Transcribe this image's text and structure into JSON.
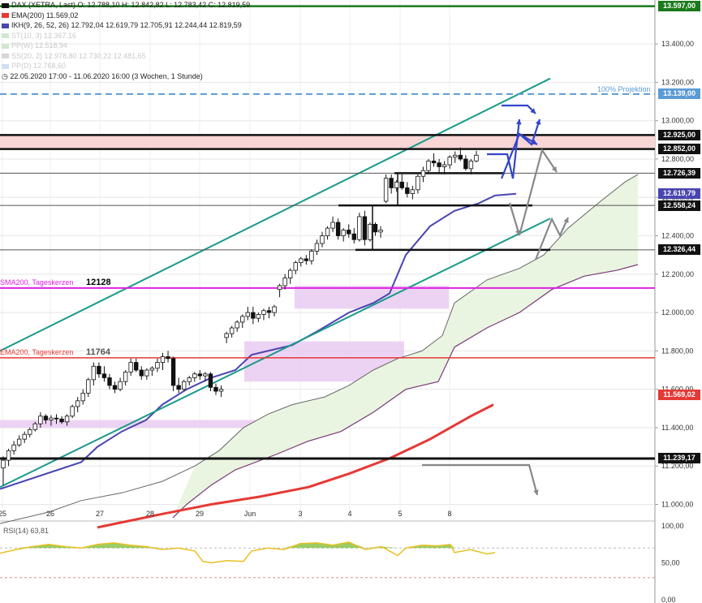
{
  "legend": {
    "main": "DAX (XETRA, Last)  O: 12.788,10  H: 12.842,82  L: 12.783,42  C: 12.819,59",
    "ema": "EMA(200)  11.569,02",
    "ikh": "IKH(9, 26, 52, 26)  12.792,04  12.619,79  12.705,91  12.244,44  12.819,59",
    "st": "ST(10, 3)  12.367,16",
    "pp": "PP(W)  12.518,94",
    "ss": "SS(20, 2)  12.978,80  12.730,22  12.481,65",
    "ppd": "PP(D)  12.768,60",
    "range": "22.05.2020 17:00 - 11.06.2020 16:00  (3 Wochen, 1 Stunde)"
  },
  "annotations": {
    "sma200": "SMA200, Tageskerzen",
    "sma200_value": "12128",
    "ema200": "EMA200, Tageskerzen",
    "ema200_value": "11764",
    "projektion": "100% Projektion"
  },
  "colors": {
    "green_line": "#1a7a1a",
    "projection": "#5b9bd5",
    "magenta": "#e020e0",
    "red": "#e53935",
    "channel": "#1a9a8a",
    "ikh_blue": "#4a46b0",
    "ikh_purple": "#7b3a7b",
    "cloud": "#e9f5e1",
    "black": "#111111",
    "pink_zone": "#f8d6d6",
    "lavender_zone": "#e8c8f0",
    "blue_arrow": "#3344cc",
    "grey_arrow": "#888888",
    "rsi": "#e8c020"
  },
  "chart_data": [
    {
      "type": "candlestick",
      "title": "DAX (XETRA, Last)",
      "x_ticks": [
        "25",
        "26",
        "27",
        "28",
        "29",
        "Jun",
        "3",
        "4",
        "5",
        "8"
      ],
      "y_ticks": [
        "11.000,00",
        "11.200,00",
        "11.400,00",
        "11.600,00",
        "11.800,00",
        "12.000,00",
        "12.200,00",
        "12.400,00",
        "12.600,00",
        "12.800,00",
        "13.000,00",
        "13.200,00",
        "13.400,00"
      ],
      "ylim": [
        10900,
        13620
      ],
      "price_labels": [
        {
          "value": 13597,
          "text": "13.597,00",
          "color": "#1a7a1a"
        },
        {
          "value": 13139,
          "text": "13.139,00",
          "color": "#5b9bd5"
        },
        {
          "value": 12925,
          "text": "12.925,00",
          "color": "#111111"
        },
        {
          "value": 12852,
          "text": "12.852,00",
          "color": "#111111"
        },
        {
          "value": 12726.39,
          "text": "12.726,39",
          "color": "#111111"
        },
        {
          "value": 12619.79,
          "text": "12.619,79",
          "color": "#4a46b0"
        },
        {
          "value": 12558.24,
          "text": "12.558,24",
          "color": "#111111"
        },
        {
          "value": 12326.44,
          "text": "12.326,44",
          "color": "#111111"
        },
        {
          "value": 11569.02,
          "text": "11.569,02",
          "color": "#e53935"
        },
        {
          "value": 11239.17,
          "text": "11.239,17",
          "color": "#111111"
        }
      ],
      "levels": {
        "resistance_green": 13597,
        "projection_100": 13139,
        "zone_top": 12925,
        "zone_bottom": 12852,
        "support_1": 12726.39,
        "support_2": 12558.24,
        "support_3": 12326.44,
        "sma200_daily": 12128,
        "ema200_daily": 11764,
        "support_low": 11239.17
      },
      "candles": [
        [
          11190,
          11250,
          11100,
          11230
        ],
        [
          11230,
          11290,
          11200,
          11280
        ],
        [
          11280,
          11330,
          11260,
          11310
        ],
        [
          11310,
          11360,
          11300,
          11340
        ],
        [
          11340,
          11380,
          11320,
          11365
        ],
        [
          11365,
          11400,
          11350,
          11390
        ],
        [
          11390,
          11430,
          11380,
          11420
        ],
        [
          11420,
          11480,
          11400,
          11460
        ],
        [
          11460,
          11470,
          11420,
          11440
        ],
        [
          11440,
          11465,
          11410,
          11450
        ],
        [
          11450,
          11470,
          11420,
          11445
        ],
        [
          11445,
          11460,
          11420,
          11430
        ],
        [
          11430,
          11470,
          11410,
          11460
        ],
        [
          11460,
          11520,
          11450,
          11510
        ],
        [
          11510,
          11560,
          11480,
          11540
        ],
        [
          11540,
          11600,
          11520,
          11580
        ],
        [
          11580,
          11660,
          11560,
          11650
        ],
        [
          11650,
          11740,
          11620,
          11720
        ],
        [
          11720,
          11740,
          11660,
          11680
        ],
        [
          11680,
          11720,
          11640,
          11660
        ],
        [
          11660,
          11680,
          11600,
          11620
        ],
        [
          11620,
          11640,
          11580,
          11600
        ],
        [
          11600,
          11660,
          11590,
          11640
        ],
        [
          11640,
          11700,
          11620,
          11690
        ],
        [
          11690,
          11760,
          11670,
          11740
        ],
        [
          11740,
          11760,
          11690,
          11700
        ],
        [
          11700,
          11720,
          11650,
          11670
        ],
        [
          11670,
          11710,
          11650,
          11700
        ],
        [
          11700,
          11720,
          11670,
          11710
        ],
        [
          11710,
          11760,
          11690,
          11740
        ],
        [
          11740,
          11790,
          11700,
          11770
        ],
        [
          11770,
          11800,
          11740,
          11760
        ],
        [
          11760,
          11770,
          11590,
          11620
        ],
        [
          11620,
          11660,
          11580,
          11600
        ],
        [
          11600,
          11650,
          11590,
          11640
        ],
        [
          11640,
          11670,
          11620,
          11660
        ],
        [
          11660,
          11690,
          11640,
          11680
        ],
        [
          11680,
          11700,
          11650,
          11670
        ],
        [
          11670,
          11690,
          11640,
          11680
        ],
        [
          11680,
          11690,
          11590,
          11610
        ],
        [
          11610,
          11630,
          11570,
          11590
        ],
        [
          11590,
          11620,
          11560,
          11600
        ],
        [
          11870,
          11900,
          11840,
          11890
        ],
        [
          11890,
          11930,
          11870,
          11920
        ],
        [
          11920,
          11960,
          11900,
          11950
        ],
        [
          11950,
          11990,
          11920,
          11980
        ],
        [
          11980,
          12030,
          11960,
          12000
        ],
        [
          12000,
          12030,
          11940,
          11970
        ],
        [
          11970,
          12000,
          11950,
          11990
        ],
        [
          11990,
          12020,
          11960,
          12010
        ],
        [
          12010,
          12030,
          11970,
          12000
        ],
        [
          12000,
          12040,
          11980,
          12030
        ],
        [
          12120,
          12150,
          12080,
          12140
        ],
        [
          12140,
          12200,
          12120,
          12180
        ],
        [
          12180,
          12230,
          12150,
          12220
        ],
        [
          12220,
          12270,
          12200,
          12260
        ],
        [
          12260,
          12290,
          12240,
          12280
        ],
        [
          12280,
          12300,
          12250,
          12270
        ],
        [
          12270,
          12330,
          12250,
          12320
        ],
        [
          12320,
          12380,
          12300,
          12360
        ],
        [
          12360,
          12420,
          12340,
          12400
        ],
        [
          12400,
          12450,
          12380,
          12440
        ],
        [
          12440,
          12500,
          12420,
          12470
        ],
        [
          12470,
          12490,
          12380,
          12400
        ],
        [
          12400,
          12440,
          12370,
          12430
        ],
        [
          12430,
          12460,
          12390,
          12410
        ],
        [
          12410,
          12440,
          12360,
          12380
        ],
        [
          12380,
          12520,
          12370,
          12500
        ],
        [
          12500,
          12530,
          12350,
          12380
        ],
        [
          12380,
          12470,
          12370,
          12460
        ],
        [
          12460,
          12470,
          12400,
          12420
        ],
        [
          12420,
          12450,
          12390,
          12430
        ],
        [
          12580,
          12720,
          12570,
          12700
        ],
        [
          12700,
          12720,
          12620,
          12650
        ],
        [
          12650,
          12690,
          12630,
          12680
        ],
        [
          12680,
          12720,
          12640,
          12650
        ],
        [
          12650,
          12680,
          12600,
          12620
        ],
        [
          12620,
          12660,
          12590,
          12640
        ],
        [
          12640,
          12720,
          12620,
          12710
        ],
        [
          12710,
          12760,
          12680,
          12740
        ],
        [
          12740,
          12800,
          12730,
          12790
        ],
        [
          12790,
          12830,
          12760,
          12780
        ],
        [
          12780,
          12800,
          12730,
          12760
        ],
        [
          12760,
          12790,
          12720,
          12770
        ],
        [
          12770,
          12820,
          12750,
          12810
        ],
        [
          12810,
          12840,
          12780,
          12820
        ],
        [
          12820,
          12860,
          12790,
          12800
        ],
        [
          12800,
          12820,
          12740,
          12750
        ],
        [
          12750,
          12800,
          12720,
          12790
        ],
        [
          12790,
          12843,
          12783,
          12820
        ]
      ]
    },
    {
      "type": "line",
      "title": "RSI(14)",
      "value_label": "63,81",
      "y_ticks": [
        "100,00",
        "50,00",
        "0,00"
      ],
      "ylim": [
        0,
        100
      ]
    }
  ]
}
